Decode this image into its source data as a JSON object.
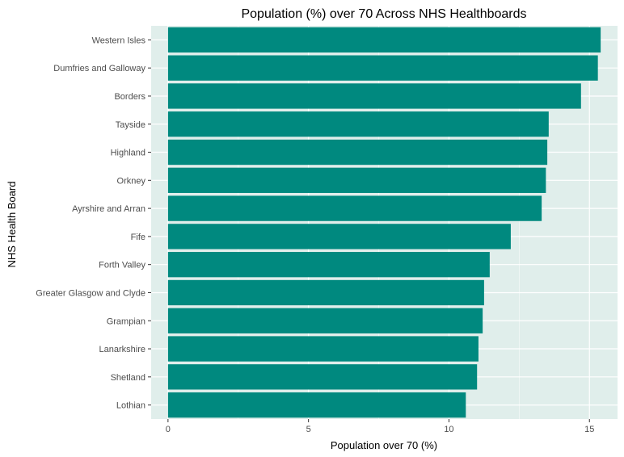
{
  "chart_data": {
    "type": "bar",
    "orientation": "horizontal",
    "title": "Population (%) over 70 Across NHS Healthboards",
    "xlabel": "Population over 70 (%)",
    "ylabel": "NHS Health Board",
    "categories": [
      "Western Isles",
      "Dumfries and Galloway",
      "Borders",
      "Tayside",
      "Highland",
      "Orkney",
      "Ayrshire and Arran",
      "Fife",
      "Forth Valley",
      "Greater Glasgow and Clyde",
      "Grampian",
      "Lanarkshire",
      "Shetland",
      "Lothian"
    ],
    "values": [
      15.4,
      15.3,
      14.7,
      13.55,
      13.5,
      13.45,
      13.3,
      12.2,
      11.45,
      11.25,
      11.2,
      11.05,
      11.0,
      10.6
    ],
    "xlim": [
      -0.6,
      16.0
    ],
    "xticks": [
      0,
      5,
      10,
      15
    ],
    "grid": true,
    "bar_color": "#00897f",
    "panel_color": "#e0eeeb",
    "grid_color": "#ffffff"
  }
}
